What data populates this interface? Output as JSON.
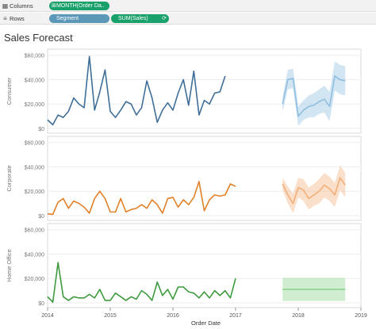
{
  "shelves": {
    "columns": {
      "icon": "columns-grid-icon",
      "label": "Columns",
      "pill_label": "MONTH(Order Da..",
      "pill_mark": "⊞"
    },
    "rows": {
      "icon": "rows-list-icon",
      "label": "Rows",
      "pills": [
        {
          "label": "Segment",
          "mark": "",
          "end": ""
        },
        {
          "label": "SUM(Sales)",
          "mark": "",
          "end": "⟳"
        }
      ]
    }
  },
  "colors": {
    "consumer": "#3f6f98",
    "consumer_forecast": "#8fbfe0",
    "corporate": "#e0812a",
    "corporate_forecast": "#f2b07a",
    "home_office": "#3e9a3e",
    "home_office_forecast": "#8dd28d"
  },
  "chart_data": {
    "type": "line",
    "title": "Sales Forecast",
    "xlabel": "Order Date",
    "x_ticks": [
      "2014",
      "2015",
      "2016",
      "2017",
      "2018",
      "2019"
    ],
    "y_ticks": [
      "$0",
      "$20,000",
      "$40,000",
      "$60,000"
    ],
    "ylim": [
      0,
      65000
    ],
    "xlim": [
      2014.0,
      2019.0
    ],
    "actual_start": 2014.0,
    "forecast_start": 2017.75,
    "grid": true,
    "series": [
      {
        "name": "Consumer",
        "actual": [
          7000,
          3000,
          11000,
          9000,
          14000,
          25000,
          20000,
          17000,
          59000,
          15000,
          30000,
          48000,
          14000,
          9000,
          15000,
          22000,
          20000,
          11000,
          17000,
          39000,
          25000,
          5000,
          15000,
          21000,
          15000,
          29000,
          40000,
          19000,
          47000,
          11000,
          23000,
          20000,
          29000,
          30000,
          43000
        ],
        "forecast": [
          20000,
          40000,
          41000,
          10000,
          15000,
          18000,
          19000,
          22000,
          24000,
          18000,
          43000,
          40000,
          39000
        ],
        "band_width": [
          6000,
          8000,
          8000,
          8000,
          8000,
          9000,
          10000,
          10000,
          11000,
          12000,
          12000,
          12000,
          12000
        ]
      },
      {
        "name": "Corporate",
        "actual": [
          1500,
          1000,
          11000,
          14000,
          6000,
          12000,
          10000,
          7000,
          2000,
          14000,
          20000,
          14000,
          3000,
          3000,
          14000,
          3000,
          5000,
          6000,
          9000,
          6000,
          13000,
          9000,
          2000,
          14000,
          15000,
          7000,
          13000,
          9000,
          15000,
          28000,
          4000,
          13000,
          17000,
          16000,
          17000,
          26000,
          24000
        ],
        "forecast": [
          26000,
          17000,
          10000,
          23000,
          21000,
          14000,
          17000,
          20000,
          25000,
          22000,
          17000,
          31000,
          25000
        ],
        "band_width": [
          5000,
          7000,
          8000,
          8000,
          9000,
          9000,
          9000,
          10000,
          10000,
          10000,
          10000,
          10000,
          10000
        ]
      },
      {
        "name": "Home Office",
        "actual": [
          5000,
          500,
          33000,
          5000,
          2000,
          5000,
          4000,
          4000,
          7000,
          4000,
          11000,
          2000,
          2000,
          8000,
          5000,
          2000,
          5000,
          3000,
          10000,
          7000,
          2000,
          17000,
          6000,
          11000,
          3000,
          13000,
          13000,
          9000,
          8000,
          4000,
          9000,
          4000,
          10000,
          6000,
          10000,
          4000,
          20000
        ],
        "forecast": [
          11000,
          11000,
          11000,
          11000,
          11000,
          11000,
          11000,
          11000,
          11000,
          11000,
          11000,
          11000,
          11000
        ],
        "band_width": [
          9500,
          9500,
          9500,
          9500,
          9500,
          9500,
          9500,
          9500,
          9500,
          9500,
          9500,
          9500,
          9500
        ]
      }
    ]
  }
}
